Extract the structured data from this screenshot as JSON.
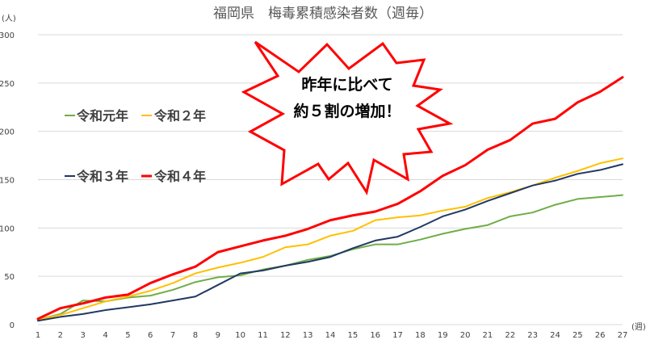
{
  "chart_data": {
    "type": "line",
    "title": "福岡県　梅毒累積感染者数（週毎）",
    "ylabel": "(人)",
    "xlabel": "(週)",
    "ylim": [
      0,
      300
    ],
    "yticks": [
      0,
      50,
      100,
      150,
      200,
      250,
      300
    ],
    "x": [
      1,
      2,
      3,
      4,
      5,
      6,
      7,
      8,
      9,
      10,
      11,
      12,
      13,
      14,
      15,
      16,
      17,
      18,
      19,
      20,
      21,
      22,
      23,
      24,
      25,
      26,
      27
    ],
    "grid": true,
    "series": [
      {
        "name": "令和元年",
        "color": "#70ad47",
        "values": [
          5,
          11,
          25,
          24,
          28,
          30,
          36,
          44,
          49,
          51,
          57,
          61,
          67,
          71,
          78,
          83,
          83,
          88,
          94,
          99,
          103,
          112,
          116,
          124,
          130,
          132,
          134
        ]
      },
      {
        "name": "令和２年",
        "color": "#ffc000",
        "values": [
          5,
          10,
          17,
          24,
          29,
          35,
          43,
          53,
          59,
          64,
          70,
          80,
          83,
          92,
          97,
          108,
          111,
          113,
          118,
          122,
          131,
          137,
          144,
          152,
          159,
          167,
          172
        ]
      },
      {
        "name": "令和３年",
        "color": "#203864",
        "values": [
          4,
          8,
          11,
          15,
          18,
          21,
          25,
          29,
          41,
          53,
          56,
          61,
          65,
          70,
          79,
          87,
          91,
          101,
          112,
          119,
          128,
          136,
          144,
          149,
          156,
          160,
          166
        ]
      },
      {
        "name": "令和４年",
        "color": "#ff0000",
        "values": [
          6,
          17,
          22,
          28,
          31,
          43,
          52,
          60,
          75,
          81,
          87,
          92,
          99,
          108,
          113,
          117,
          125,
          138,
          154,
          165,
          181,
          191,
          208,
          213,
          230,
          241,
          256
        ]
      }
    ],
    "legend": [
      {
        "label": "令和元年",
        "color": "#70ad47"
      },
      {
        "label": "令和２年",
        "color": "#ffc000"
      },
      {
        "label": "令和３年",
        "color": "#203864"
      },
      {
        "label": "令和４年",
        "color": "#ff0000"
      }
    ],
    "annotation": {
      "lines": [
        "昨年に比べて",
        "約５割の増加！"
      ]
    }
  }
}
